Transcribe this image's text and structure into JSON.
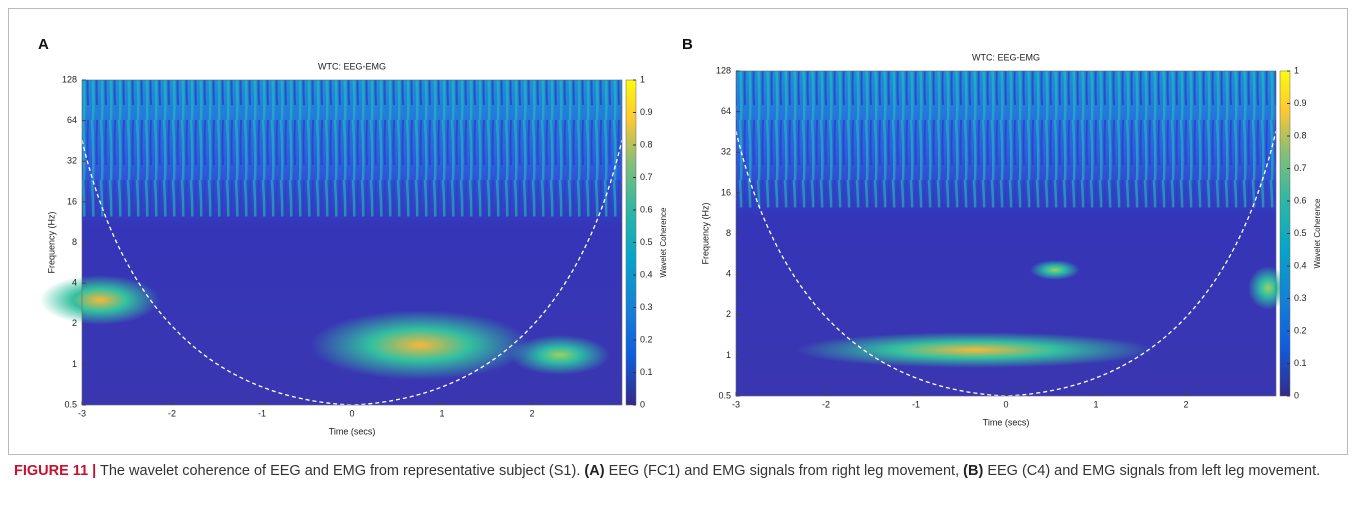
{
  "figure": {
    "panels": [
      {
        "label": "A",
        "title": "WTC: EEG-EMG",
        "xlabel": "Time (secs)",
        "ylabel": "Frequency (Hz)",
        "colorbar_label": "Wavelet Coherence",
        "xlim": [
          -3,
          3
        ],
        "xticks": [
          -3,
          -2,
          -1,
          0,
          1,
          2
        ],
        "ylim": [
          0.5,
          128
        ],
        "yticks": [
          0.5,
          1,
          2,
          4,
          8,
          16,
          32,
          64,
          128
        ],
        "log_y": true,
        "clim": [
          0,
          1
        ],
        "cticks": [
          0,
          0.1,
          0.2,
          0.3,
          0.4,
          0.5,
          0.6,
          0.7,
          0.8,
          0.9,
          1
        ]
      },
      {
        "label": "B",
        "title": "WTC: EEG-EMG",
        "xlabel": "Time (secs)",
        "ylabel": "Frequency (Hz)",
        "colorbar_label": "Wavelet Coherence",
        "xlim": [
          -3,
          3
        ],
        "xticks": [
          -3,
          -2,
          -1,
          0,
          1,
          2
        ],
        "ylim": [
          0.5,
          128
        ],
        "yticks": [
          0.5,
          1,
          2,
          4,
          8,
          16,
          32,
          64,
          128
        ],
        "log_y": true,
        "clim": [
          0,
          1
        ],
        "cticks": [
          0,
          0.1,
          0.2,
          0.3,
          0.4,
          0.5,
          0.6,
          0.7,
          0.8,
          0.9,
          1
        ]
      }
    ],
    "caption": {
      "label": "FIGURE 11 |",
      "text": "The wavelet coherence of EEG and EMG from representative subject (S1).",
      "a_label": "(A)",
      "a_text": "EEG (FC1) and EMG signals from right leg movement,",
      "b_label": "(B)",
      "b_text": "EEG (C4) and EMG signals from left leg movement."
    }
  }
}
